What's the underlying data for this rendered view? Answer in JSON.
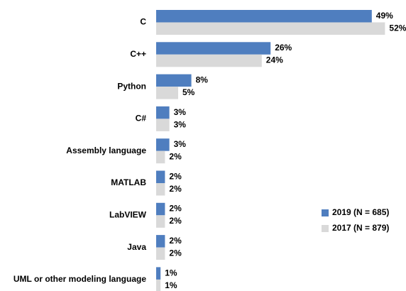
{
  "chart_data": {
    "type": "bar",
    "orientation": "horizontal",
    "categories": [
      "C",
      "C++",
      "Python",
      "C#",
      "Assembly language",
      "MATLAB",
      "LabVIEW",
      "Java",
      "UML or other modeling language"
    ],
    "series": [
      {
        "name": "2019 (N = 685)",
        "color": "#4f7ebf",
        "values": [
          49,
          26,
          8,
          3,
          3,
          2,
          2,
          2,
          1
        ],
        "value_labels": [
          "49%",
          "26%",
          "8%",
          "3%",
          "3%",
          "2%",
          "2%",
          "2%",
          "1%"
        ]
      },
      {
        "name": "2017 (N = 879)",
        "color": "#d9d9d9",
        "values": [
          52,
          24,
          5,
          3,
          2,
          2,
          2,
          2,
          1
        ],
        "value_labels": [
          "52%",
          "24%",
          "5%",
          "3%",
          "2%",
          "2%",
          "2%",
          "2%",
          "1%"
        ]
      }
    ],
    "legend": "right"
  }
}
